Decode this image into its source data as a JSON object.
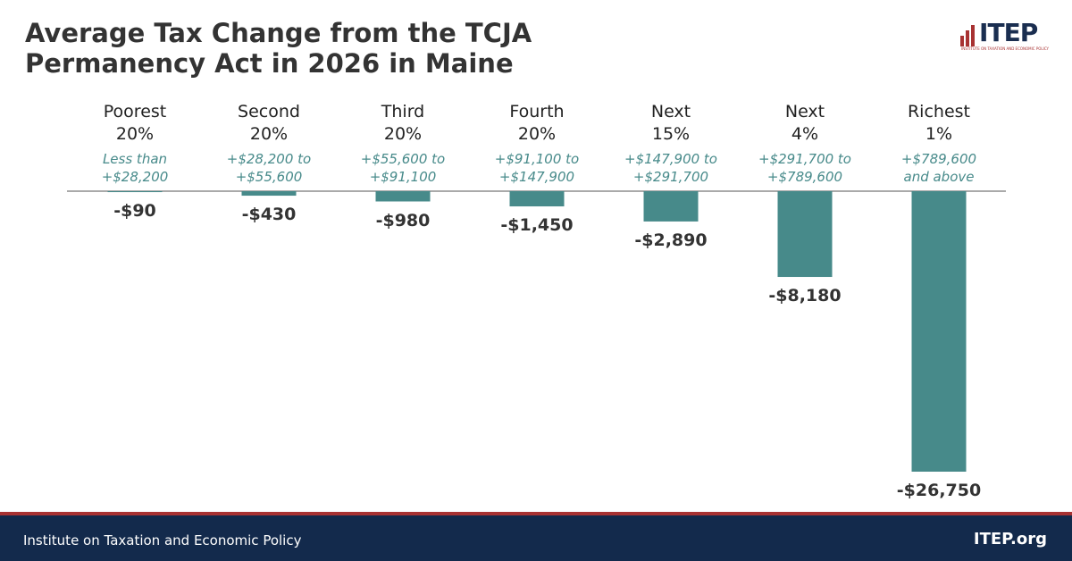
{
  "chart_data": {
    "type": "bar",
    "title": "Average Tax Change from the TCJA\nPermanency Act in 2026 in Maine",
    "categories": [
      "Poorest\n20%",
      "Second\n20%",
      "Third\n20%",
      "Fourth\n20%",
      "Next\n15%",
      "Next\n4%",
      "Richest\n1%"
    ],
    "income_ranges": [
      "Less than\n+$28,200",
      "+$28,200 to\n+$55,600",
      "+$55,600 to\n+$91,100",
      "+$91,100 to\n+$147,900",
      "+$147,900 to\n+$291,700",
      "+$291,700 to\n+$789,600",
      "+$789,600\nand above"
    ],
    "values": [
      -90,
      -430,
      -980,
      -1450,
      -2890,
      -8180,
      -26750
    ],
    "value_labels": [
      "-$90",
      "-$430",
      "-$980",
      "-$1,450",
      "-$2,890",
      "-$8,180",
      "-$26,750"
    ],
    "color": "#478a8a"
  },
  "logo": {
    "name": "ITEP",
    "subtitle": "INSTITUTE ON TAXATION AND ECONOMIC POLICY"
  },
  "footer": {
    "left": "Institute on Taxation and Economic Policy",
    "right": "ITEP.org"
  }
}
